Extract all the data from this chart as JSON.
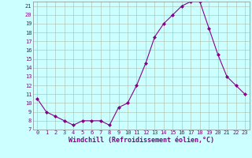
{
  "x": [
    0,
    1,
    2,
    3,
    4,
    5,
    6,
    7,
    8,
    9,
    10,
    11,
    12,
    13,
    14,
    15,
    16,
    17,
    18,
    19,
    20,
    21,
    22,
    23
  ],
  "y": [
    10.5,
    9.0,
    8.5,
    8.0,
    7.5,
    8.0,
    8.0,
    8.0,
    7.5,
    9.5,
    10.0,
    12.0,
    14.5,
    17.5,
    19.0,
    20.0,
    21.0,
    21.5,
    21.5,
    18.5,
    15.5,
    13.0,
    12.0,
    11.0
  ],
  "line_color": "#880088",
  "marker": "D",
  "marker_size": 2,
  "background_color": "#ccffff",
  "grid_color": "#aabbaa",
  "xlabel": "Windchill (Refroidissement éolien,°C)",
  "ylabel": "",
  "ylim": [
    7,
    21.5
  ],
  "xlim": [
    -0.5,
    23.5
  ],
  "yticks": [
    7,
    8,
    9,
    10,
    11,
    12,
    13,
    14,
    15,
    16,
    17,
    18,
    19,
    20,
    21
  ],
  "xticks": [
    0,
    1,
    2,
    3,
    4,
    5,
    6,
    7,
    8,
    9,
    10,
    11,
    12,
    13,
    14,
    15,
    16,
    17,
    18,
    19,
    20,
    21,
    22,
    23
  ],
  "tick_fontsize": 5,
  "xlabel_fontsize": 6,
  "label_color": "#880088"
}
